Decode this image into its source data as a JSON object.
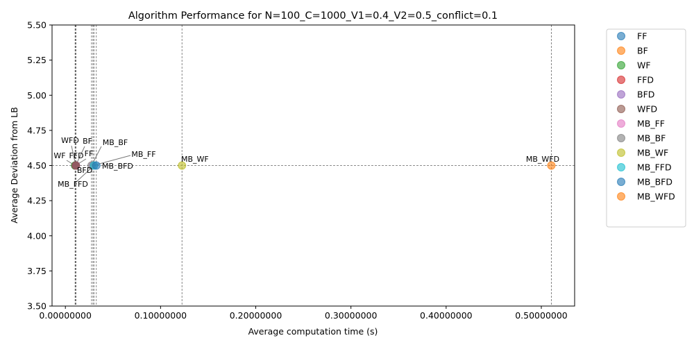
{
  "chart_data": {
    "type": "scatter",
    "title": "Algorithm Performance for N=100_C=1000_V1=0.4_V2=0.5_conflict=0.1",
    "xlabel": "Average computation time (s)",
    "ylabel": "Average Deviation from LB",
    "xlim": [
      -0.014,
      0.535
    ],
    "ylim": [
      3.5,
      5.5
    ],
    "x_ticks": [
      {
        "value": 0.0,
        "label": "0.00000000"
      },
      {
        "value": 0.1,
        "label": "0.10000000"
      },
      {
        "value": 0.2,
        "label": "0.20000000"
      },
      {
        "value": 0.3,
        "label": "0.30000000"
      },
      {
        "value": 0.4,
        "label": "0.40000000"
      },
      {
        "value": 0.5,
        "label": "0.50000000"
      }
    ],
    "y_ticks": [
      {
        "value": 3.5,
        "label": "3.50"
      },
      {
        "value": 3.75,
        "label": "3.75"
      },
      {
        "value": 4.0,
        "label": "4.00"
      },
      {
        "value": 4.25,
        "label": "4.25"
      },
      {
        "value": 4.5,
        "label": "4.50"
      },
      {
        "value": 4.75,
        "label": "4.75"
      },
      {
        "value": 5.0,
        "label": "5.00"
      },
      {
        "value": 5.25,
        "label": "5.25"
      },
      {
        "value": 5.5,
        "label": "5.50"
      }
    ],
    "grid": false,
    "reference_hline": 4.5,
    "legend_position": "outside right",
    "series": [
      {
        "name": "FF",
        "x": 0.0105,
        "y": 4.5,
        "color": "#1f77b4"
      },
      {
        "name": "BF",
        "x": 0.0108,
        "y": 4.5,
        "color": "#ff7f0e"
      },
      {
        "name": "WF",
        "x": 0.0102,
        "y": 4.5,
        "color": "#2ca02c"
      },
      {
        "name": "FFD",
        "x": 0.011,
        "y": 4.5,
        "color": "#d62728"
      },
      {
        "name": "BFD",
        "x": 0.0111,
        "y": 4.5,
        "color": "#9467bd"
      },
      {
        "name": "WFD",
        "x": 0.0109,
        "y": 4.5,
        "color": "#8c564b"
      },
      {
        "name": "MB_FF",
        "x": 0.029,
        "y": 4.5,
        "color": "#e377c2"
      },
      {
        "name": "MB_BF",
        "x": 0.0275,
        "y": 4.5,
        "color": "#7f7f7f"
      },
      {
        "name": "MB_WF",
        "x": 0.1225,
        "y": 4.5,
        "color": "#bcbd22"
      },
      {
        "name": "MB_FFD",
        "x": 0.03,
        "y": 4.5,
        "color": "#17becf"
      },
      {
        "name": "MB_BFD",
        "x": 0.0325,
        "y": 4.5,
        "color": "#1f77b4"
      },
      {
        "name": "MB_WFD",
        "x": 0.5105,
        "y": 4.5,
        "color": "#ff7f0e"
      }
    ],
    "annotations": [
      {
        "text": "FF",
        "series": "FF"
      },
      {
        "text": "BF",
        "series": "BF"
      },
      {
        "text": "WF",
        "series": "WF"
      },
      {
        "text": "FFD",
        "series": "FFD"
      },
      {
        "text": "BFD",
        "series": "BFD"
      },
      {
        "text": "WFD",
        "series": "WFD"
      },
      {
        "text": "MB_FF",
        "series": "MB_FF"
      },
      {
        "text": "MB_BF",
        "series": "MB_BF"
      },
      {
        "text": "MB_WF",
        "series": "MB_WF"
      },
      {
        "text": "MB_FFD",
        "series": "MB_FFD"
      },
      {
        "text": "MB_BFD",
        "series": "MB_BFD"
      },
      {
        "text": "MB_WFD",
        "series": "MB_WFD"
      }
    ]
  }
}
